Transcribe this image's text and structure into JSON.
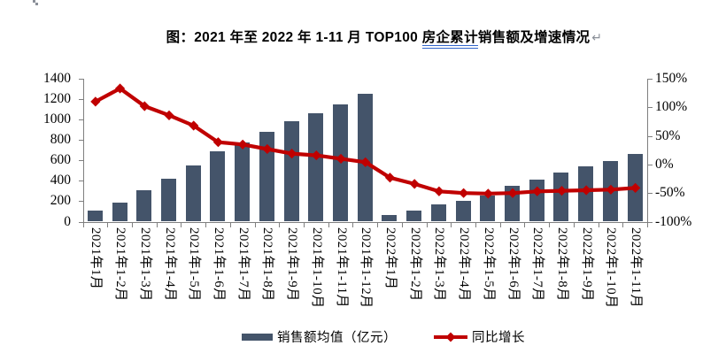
{
  "document": {
    "title": {
      "prefix": "图：2021 年至 2022 年 1-11 月 TOP100 ",
      "underlined_text": "房企累计",
      "suffix": "销售额及增速情况",
      "line_break_mark": "↵"
    }
  },
  "chart_data": {
    "type": "bar+line combo",
    "title": "图：2021年至2022年1-11月TOP100房企累计销售额及增速情况",
    "categories": [
      "2021年1月",
      "2021年1-2月",
      "2021年1-3月",
      "2021年1-4月",
      "2021年1-5月",
      "2021年1-6月",
      "2021年1-7月",
      "2021年1-8月",
      "2021年1-9月",
      "2021年1-10月",
      "2021年1-11月",
      "2021年1-12月",
      "2022年1月",
      "2022年1-2月",
      "2022年1-3月",
      "2022年1-4月",
      "2022年1-5月",
      "2022年1-6月",
      "2022年1-7月",
      "2022年1-8月",
      "2022年1-9月",
      "2022年1-10月",
      "2022年1-11月"
    ],
    "series": [
      {
        "name": "销售额均值（亿元）",
        "type": "bar",
        "yaxis": "left",
        "color": "#44546A",
        "values": [
          105,
          185,
          305,
          420,
          550,
          685,
          775,
          880,
          985,
          1060,
          1145,
          1250,
          62,
          105,
          165,
          205,
          258,
          355,
          415,
          478,
          538,
          598,
          665
        ]
      },
      {
        "name": "同比增长",
        "type": "line",
        "yaxis": "right",
        "color": "#C00000",
        "marker": "diamond",
        "values_percent": [
          110,
          133,
          102,
          86,
          68,
          39,
          35,
          27,
          19,
          16,
          10,
          4,
          -23,
          -34,
          -47,
          -50,
          -51,
          -50,
          -47,
          -46,
          -45,
          -44,
          -41
        ]
      }
    ],
    "left_axis": {
      "min": 0,
      "max": 1400,
      "step": 200,
      "tick_labels": [
        "1400",
        "1200",
        "1000",
        "800",
        "600",
        "400",
        "200",
        "0"
      ]
    },
    "right_axis": {
      "min": -100,
      "max": 150,
      "step": 50,
      "tick_labels": [
        "150%",
        "100%",
        "50%",
        "0%",
        "-50%",
        "-100%"
      ]
    },
    "gridlines": false,
    "legend_position": "bottom"
  },
  "legend": {
    "bar_label": "销售额均值（亿元）",
    "line_label": "同比增长"
  },
  "colors": {
    "bar": "#44546A",
    "line": "#C00000",
    "axis": "#7f7f7f",
    "title_underline": "#3366CC",
    "paragraph_mark": "#8a8f98"
  }
}
